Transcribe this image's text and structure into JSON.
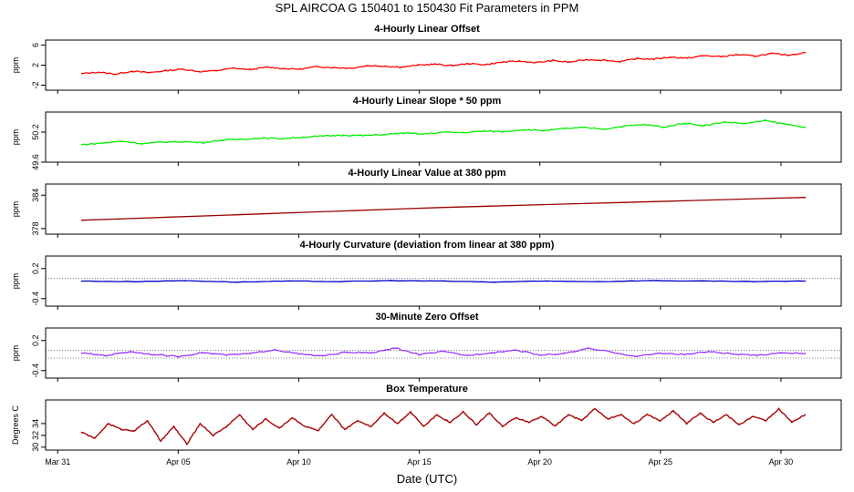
{
  "title": "SPL    AIRCOA G   150401 to 150430   Fit Parameters in PPM",
  "x_axis": {
    "label": "Date (UTC)",
    "ticks": [
      {
        "day": 0,
        "label": "Mar 31"
      },
      {
        "day": 5,
        "label": "Apr 05"
      },
      {
        "day": 10,
        "label": "Apr 10"
      },
      {
        "day": 15,
        "label": "Apr 15"
      },
      {
        "day": 20,
        "label": "Apr 20"
      },
      {
        "day": 25,
        "label": "Apr 25"
      },
      {
        "day": 30,
        "label": "Apr 30"
      }
    ],
    "range_days": [
      -0.5,
      32.5
    ]
  },
  "chart_data": [
    {
      "type": "line",
      "title": "4-Hourly Linear Offset",
      "ylabel": "ppm",
      "ylim": [
        -3,
        7
      ],
      "yticks": [
        -2,
        2,
        6
      ],
      "color": "#ff0000",
      "series": [
        {
          "name": "offset",
          "x_start": 1.0,
          "x_end": 31.0,
          "values": [
            0.3,
            0.6,
            0.2,
            0.8,
            0.5,
            0.9,
            1.2,
            0.7,
            0.9,
            1.4,
            1.1,
            1.6,
            1.3,
            1.2,
            1.7,
            1.5,
            1.4,
            1.9,
            1.8,
            1.6,
            2.0,
            2.2,
            1.9,
            2.3,
            2.1,
            2.6,
            2.8,
            2.5,
            2.9,
            2.6,
            3.1,
            3.0,
            2.7,
            3.3,
            3.2,
            3.6,
            3.4,
            3.9,
            3.7,
            4.1,
            3.8,
            4.3,
            4.0,
            4.5
          ]
        }
      ]
    },
    {
      "type": "line",
      "title": "4-Hourly Linear Slope * 50 ppm",
      "ylabel": "ppm",
      "ylim": [
        49.6,
        50.6
      ],
      "yticks": [
        49.6,
        50.2
      ],
      "ytick_labels": [
        "49.6",
        "50.2"
      ],
      "color": "#00ee00",
      "series": [
        {
          "name": "slope",
          "x_start": 1.0,
          "x_end": 31.0,
          "values": [
            49.95,
            49.98,
            50.02,
            49.97,
            50.0,
            50.01,
            49.99,
            50.04,
            50.06,
            50.08,
            50.07,
            50.1,
            50.12,
            50.14,
            50.13,
            50.15,
            50.18,
            50.16,
            50.2,
            50.19,
            50.22,
            50.21,
            50.25,
            50.23,
            50.27,
            50.29,
            50.26,
            50.32,
            50.35,
            50.3,
            50.38,
            50.33,
            50.4,
            50.37,
            50.43,
            50.36,
            50.3
          ]
        }
      ]
    },
    {
      "type": "line",
      "title": "4-Hourly Linear Value at 380 ppm",
      "ylabel": "ppm",
      "ylim": [
        377,
        386
      ],
      "yticks": [
        378,
        384
      ],
      "color": "#990000",
      "series": [
        {
          "name": "value",
          "x_start": 1.0,
          "x_end": 31.0,
          "values": [
            379.5,
            381.8,
            383.6
          ]
        }
      ]
    },
    {
      "type": "line",
      "title": "4-Hourly Curvature (deviation from linear at 380 ppm)",
      "ylabel": "ppm",
      "ylim": [
        -0.55,
        0.45
      ],
      "yticks": [
        -0.4,
        0.2
      ],
      "color": "#0000cc",
      "reference_line": 0.0,
      "series": [
        {
          "name": "curvature",
          "x_start": 1.0,
          "x_end": 31.0,
          "values": [
            -0.05,
            -0.06,
            -0.04,
            -0.07,
            -0.05,
            -0.06,
            -0.04,
            -0.05,
            -0.07,
            -0.05,
            -0.06,
            -0.04,
            -0.05,
            -0.06,
            -0.05
          ]
        }
      ]
    },
    {
      "type": "line",
      "title": "30-Minute Zero Offset",
      "ylabel": "ppm",
      "ylim": [
        -0.55,
        0.45
      ],
      "yticks": [
        -0.4,
        0.2
      ],
      "color": "#9933ff",
      "reference_lines": [
        0.0,
        -0.15
      ],
      "series": [
        {
          "name": "zero_offset",
          "x_start": 1.0,
          "x_end": 31.0,
          "values": [
            -0.05,
            -0.1,
            -0.02,
            -0.08,
            -0.12,
            -0.04,
            -0.09,
            -0.06,
            0.02,
            -0.07,
            -0.11,
            -0.03,
            -0.05,
            0.05,
            -0.08,
            -0.02,
            -0.1,
            -0.04,
            0.01,
            -0.09,
            -0.06,
            0.04,
            -0.03,
            -0.12,
            -0.05,
            -0.08,
            -0.02,
            -0.07,
            -0.1,
            -0.04,
            -0.06
          ]
        }
      ]
    },
    {
      "type": "line",
      "title": "Box Temperature",
      "ylabel": "Degrees C",
      "ylim": [
        29.5,
        38
      ],
      "yticks": [
        30,
        32,
        34
      ],
      "color": "#aa0000",
      "series": [
        {
          "name": "temperature",
          "x_start": 1.0,
          "x_end": 31.0,
          "values": [
            32.5,
            31.5,
            34.0,
            33.0,
            32.8,
            34.5,
            31.0,
            33.5,
            30.5,
            34.0,
            32.0,
            33.5,
            35.5,
            33.0,
            34.8,
            33.2,
            35.0,
            33.5,
            32.8,
            35.5,
            33.0,
            34.5,
            33.5,
            35.8,
            34.0,
            36.0,
            33.5,
            35.5,
            34.2,
            36.0,
            33.8,
            35.8,
            33.5,
            35.0,
            34.2,
            35.2,
            33.6,
            35.5,
            34.5,
            36.5,
            34.8,
            35.5,
            34.0,
            35.5,
            34.5,
            36.2,
            34.0,
            35.8,
            34.2,
            35.5,
            33.8,
            35.2,
            34.5,
            36.5,
            34.2,
            35.5
          ]
        }
      ]
    }
  ]
}
